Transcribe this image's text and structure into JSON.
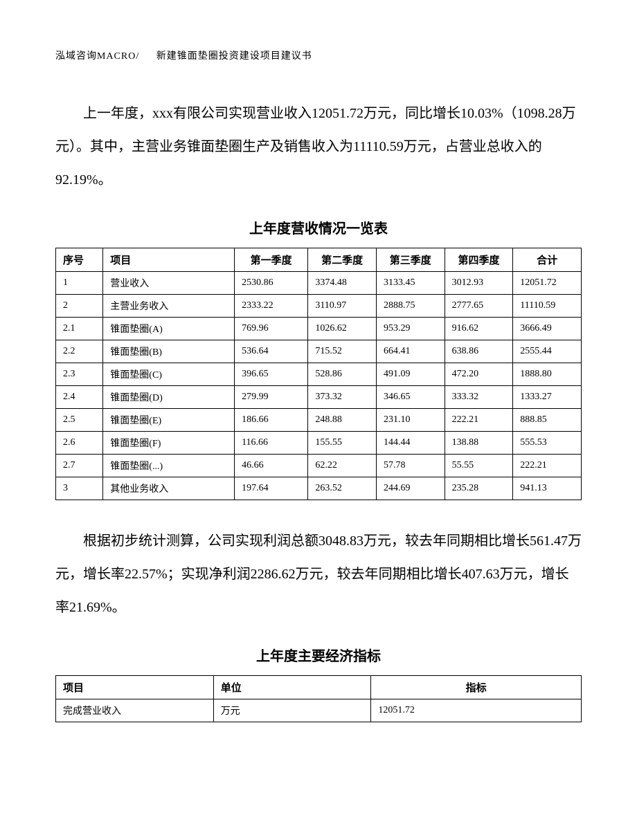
{
  "header": {
    "left": "泓域咨询MACRO/",
    "right": "新建锥面垫圈投资建设项目建议书"
  },
  "paragraph1": "上一年度，xxx有限公司实现营业收入12051.72万元，同比增长10.03%（1098.28万元）。其中，主营业务锥面垫圈生产及销售收入为11110.59万元，占营业总收入的92.19%。",
  "table1": {
    "title": "上年度营收情况一览表",
    "columns": [
      "序号",
      "项目",
      "第一季度",
      "第二季度",
      "第三季度",
      "第四季度",
      "合计"
    ],
    "rows": [
      [
        "1",
        "营业收入",
        "2530.86",
        "3374.48",
        "3133.45",
        "3012.93",
        "12051.72"
      ],
      [
        "2",
        "主营业务收入",
        "2333.22",
        "3110.97",
        "2888.75",
        "2777.65",
        "11110.59"
      ],
      [
        "2.1",
        "锥面垫圈(A)",
        "769.96",
        "1026.62",
        "953.29",
        "916.62",
        "3666.49"
      ],
      [
        "2.2",
        "锥面垫圈(B)",
        "536.64",
        "715.52",
        "664.41",
        "638.86",
        "2555.44"
      ],
      [
        "2.3",
        "锥面垫圈(C)",
        "396.65",
        "528.86",
        "491.09",
        "472.20",
        "1888.80"
      ],
      [
        "2.4",
        "锥面垫圈(D)",
        "279.99",
        "373.32",
        "346.65",
        "333.32",
        "1333.27"
      ],
      [
        "2.5",
        "锥面垫圈(E)",
        "186.66",
        "248.88",
        "231.10",
        "222.21",
        "888.85"
      ],
      [
        "2.6",
        "锥面垫圈(F)",
        "116.66",
        "155.55",
        "144.44",
        "138.88",
        "555.53"
      ],
      [
        "2.7",
        "锥面垫圈(...)",
        "46.66",
        "62.22",
        "57.78",
        "55.55",
        "222.21"
      ],
      [
        "3",
        "其他业务收入",
        "197.64",
        "263.52",
        "244.69",
        "235.28",
        "941.13"
      ]
    ]
  },
  "paragraph2": "根据初步统计测算，公司实现利润总额3048.83万元，较去年同期相比增长561.47万元，增长率22.57%；实现净利润2286.62万元，较去年同期相比增长407.63万元，增长率21.69%。",
  "table2": {
    "title": "上年度主要经济指标",
    "columns": [
      "项目",
      "单位",
      "指标"
    ],
    "rows": [
      [
        "完成营业收入",
        "万元",
        "12051.72"
      ]
    ]
  }
}
